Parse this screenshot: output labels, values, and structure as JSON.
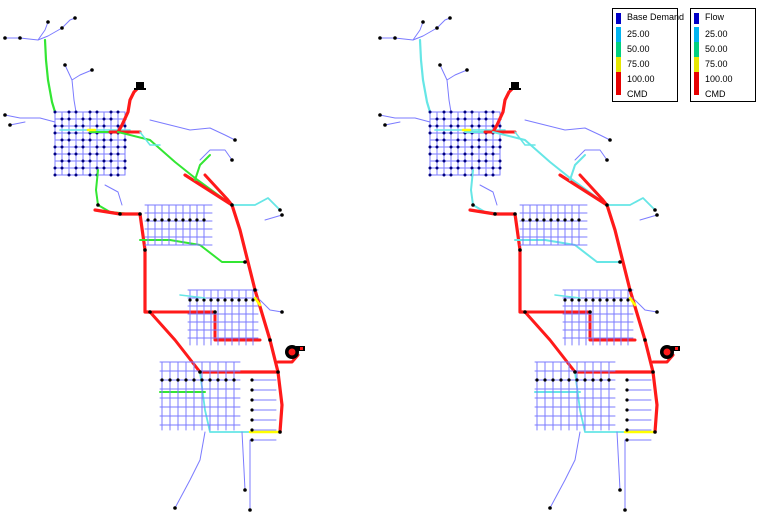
{
  "legends": [
    {
      "title": "Base Demand",
      "entries": [
        {
          "label": "25.00",
          "color": "#00b4f0"
        },
        {
          "label": "50.00",
          "color": "#00d080"
        },
        {
          "label": "75.00",
          "color": "#e6e600"
        },
        {
          "label": "100.00",
          "color": "#e60000"
        },
        {
          "label": "CMD",
          "color": "#e60000"
        }
      ],
      "base_color": "#0000c8"
    },
    {
      "title": "Flow",
      "entries": [
        {
          "label": "25.00",
          "color": "#00b4f0"
        },
        {
          "label": "50.00",
          "color": "#00d080"
        },
        {
          "label": "75.00",
          "color": "#e6e600"
        },
        {
          "label": "100.00",
          "color": "#e60000"
        },
        {
          "label": "CMD",
          "color": "#e60000"
        }
      ],
      "base_color": "#0000c8"
    }
  ],
  "colors": {
    "pipe_low": "#7b7bff",
    "pipe_mid": "#66e6e6",
    "pipe_green": "#33e633",
    "pipe_yellow": "#ffff00",
    "pipe_high": "#ff1a1a",
    "node": "#000000",
    "node_dense": "#000080"
  },
  "icons": [
    "reservoir-icon",
    "pump-icon"
  ]
}
